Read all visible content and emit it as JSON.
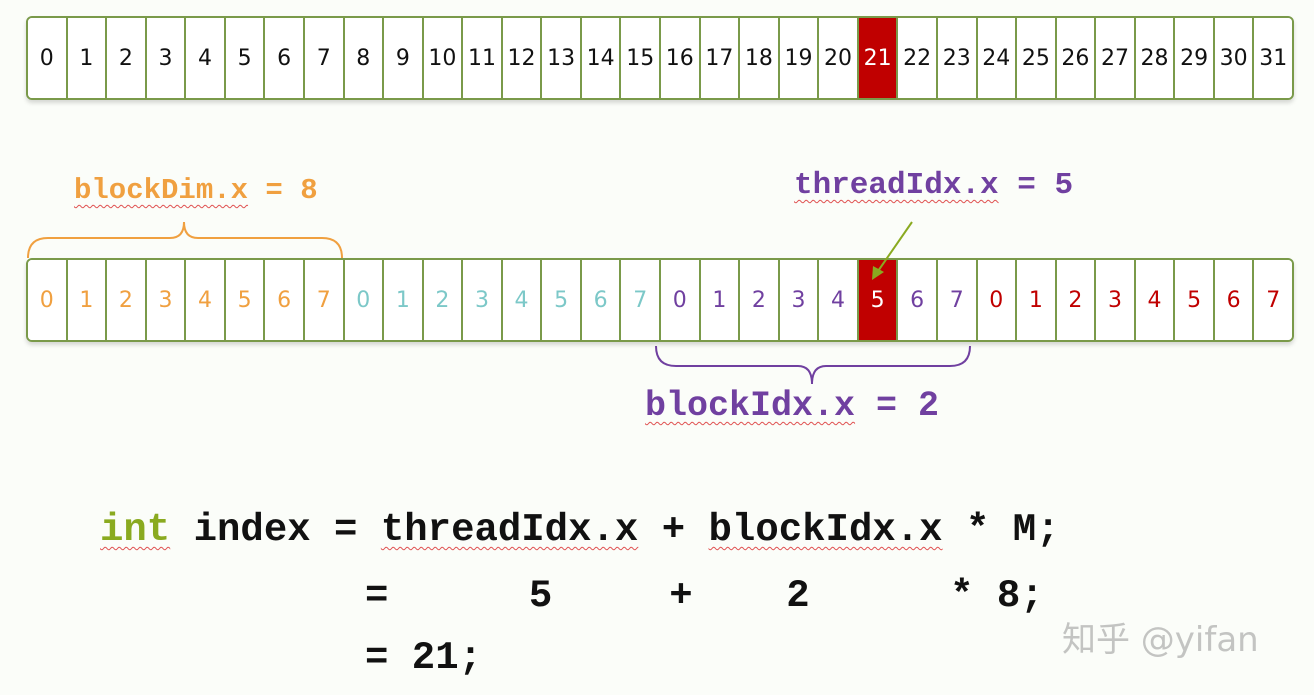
{
  "global_row": {
    "values": [
      "0",
      "1",
      "2",
      "3",
      "4",
      "5",
      "6",
      "7",
      "8",
      "9",
      "10",
      "11",
      "12",
      "13",
      "14",
      "15",
      "16",
      "17",
      "18",
      "19",
      "20",
      "21",
      "22",
      "23",
      "24",
      "25",
      "26",
      "27",
      "28",
      "29",
      "30",
      "31"
    ],
    "highlight": 21
  },
  "block_row": {
    "values": [
      "0",
      "1",
      "2",
      "3",
      "4",
      "5",
      "6",
      "7",
      "0",
      "1",
      "2",
      "3",
      "4",
      "5",
      "6",
      "7",
      "0",
      "1",
      "2",
      "3",
      "4",
      "5",
      "6",
      "7",
      "0",
      "1",
      "2",
      "3",
      "4",
      "5",
      "6",
      "7"
    ],
    "highlight": 21,
    "block_colors": [
      "#f0a040",
      "#7cc8c8",
      "#7040a0",
      "#c00000"
    ]
  },
  "labels": {
    "blockdim_name": "blockDim.x",
    "blockdim_eq": " = 8",
    "threadidx_name": "threadIdx.x",
    "threadidx_eq": " = 5",
    "blockidx_name": "blockIdx.x",
    "blockidx_eq": " = 2"
  },
  "code": {
    "kw": "int",
    "l1a": " index = ",
    "l1b": "threadIdx.x",
    "l1c": " + ",
    "l1d": "blockIdx.x",
    "l1e": " * M;",
    "l2": "=      5     +    2      * 8;",
    "l3": "= 21;"
  },
  "watermark": "知乎 @yifan",
  "colors": {
    "border": "#7a9a4a",
    "highlight": "#c00000",
    "keyword": "#8aaa20"
  }
}
